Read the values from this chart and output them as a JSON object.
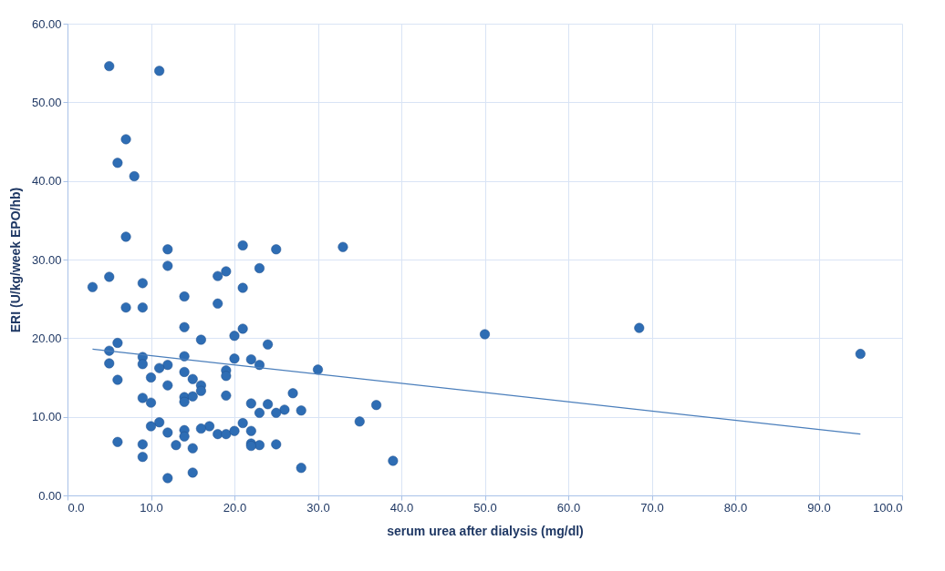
{
  "chart_data": {
    "type": "scatter",
    "xlabel": "serum urea after dialysis (mg/dl)",
    "ylabel": "ERI (U/kg/week EPO/hb)",
    "xlim": [
      0,
      100
    ],
    "ylim": [
      0,
      60
    ],
    "grid": true,
    "xticks": [
      {
        "value": 0,
        "label": "0.0"
      },
      {
        "value": 10,
        "label": "10.0"
      },
      {
        "value": 20,
        "label": "20.0"
      },
      {
        "value": 30,
        "label": "30.0"
      },
      {
        "value": 40,
        "label": "40.0"
      },
      {
        "value": 50,
        "label": "50.0"
      },
      {
        "value": 60,
        "label": "60.0"
      },
      {
        "value": 70,
        "label": "70.0"
      },
      {
        "value": 80,
        "label": "80.0"
      },
      {
        "value": 90,
        "label": "90.0"
      },
      {
        "value": 100,
        "label": "100.0"
      }
    ],
    "yticks": [
      {
        "value": 0,
        "label": "0.00"
      },
      {
        "value": 10,
        "label": "10.00"
      },
      {
        "value": 20,
        "label": "20.00"
      },
      {
        "value": 30,
        "label": "30.00"
      },
      {
        "value": 40,
        "label": "40.00"
      },
      {
        "value": 50,
        "label": "50.00"
      },
      {
        "value": 60,
        "label": "60.00"
      }
    ],
    "series": [
      {
        "color": "#2e6db4",
        "marker": "circle",
        "x": [
          5,
          11,
          7,
          6,
          8,
          7,
          12,
          21,
          25,
          33,
          12,
          19,
          23,
          18,
          5,
          9,
          3,
          21,
          14,
          18,
          7,
          9,
          14,
          21,
          50,
          68.5,
          20,
          16,
          6,
          24,
          5,
          95,
          9,
          14,
          20,
          22,
          23,
          5,
          9,
          12,
          11,
          30,
          19,
          19,
          14,
          10,
          15,
          6,
          16,
          12,
          16,
          27,
          14,
          15,
          9,
          19,
          10,
          22,
          24,
          37,
          14,
          26,
          28,
          23,
          25,
          35,
          11,
          21,
          10,
          17,
          16,
          14,
          22,
          12,
          18,
          19,
          20,
          14,
          6,
          9,
          13,
          22,
          23,
          22,
          25,
          15,
          9,
          39,
          28,
          15,
          12
        ],
        "values": [
          54.6,
          54,
          45.3,
          42.3,
          40.6,
          32.9,
          31.3,
          31.8,
          31.3,
          31.6,
          29.2,
          28.5,
          28.9,
          27.9,
          27.8,
          27,
          26.5,
          26.4,
          25.3,
          24.4,
          23.9,
          23.9,
          21.4,
          21.2,
          20.5,
          21.3,
          20.3,
          19.8,
          19.4,
          19.2,
          18.4,
          18,
          17.6,
          17.7,
          17.4,
          17.3,
          16.6,
          16.8,
          16.7,
          16.6,
          16.2,
          16,
          15.9,
          15.2,
          15.7,
          15,
          14.8,
          14.7,
          14,
          14,
          13.3,
          13,
          12.5,
          12.6,
          12.4,
          12.7,
          11.8,
          11.7,
          11.6,
          11.5,
          11.9,
          10.9,
          10.8,
          10.5,
          10.5,
          9.4,
          9.3,
          9.2,
          8.8,
          8.8,
          8.5,
          8.3,
          8.2,
          8,
          7.8,
          7.8,
          8.2,
          7.5,
          6.8,
          6.5,
          6.4,
          6.6,
          6.4,
          6.3,
          6.5,
          6,
          4.9,
          4.4,
          3.5,
          2.9,
          2.2
        ]
      },
      {
        "type": "line",
        "marker": "none",
        "color": "#4a7ebb",
        "x": [
          3,
          95
        ],
        "values": [
          18.6,
          7.8
        ]
      }
    ]
  }
}
